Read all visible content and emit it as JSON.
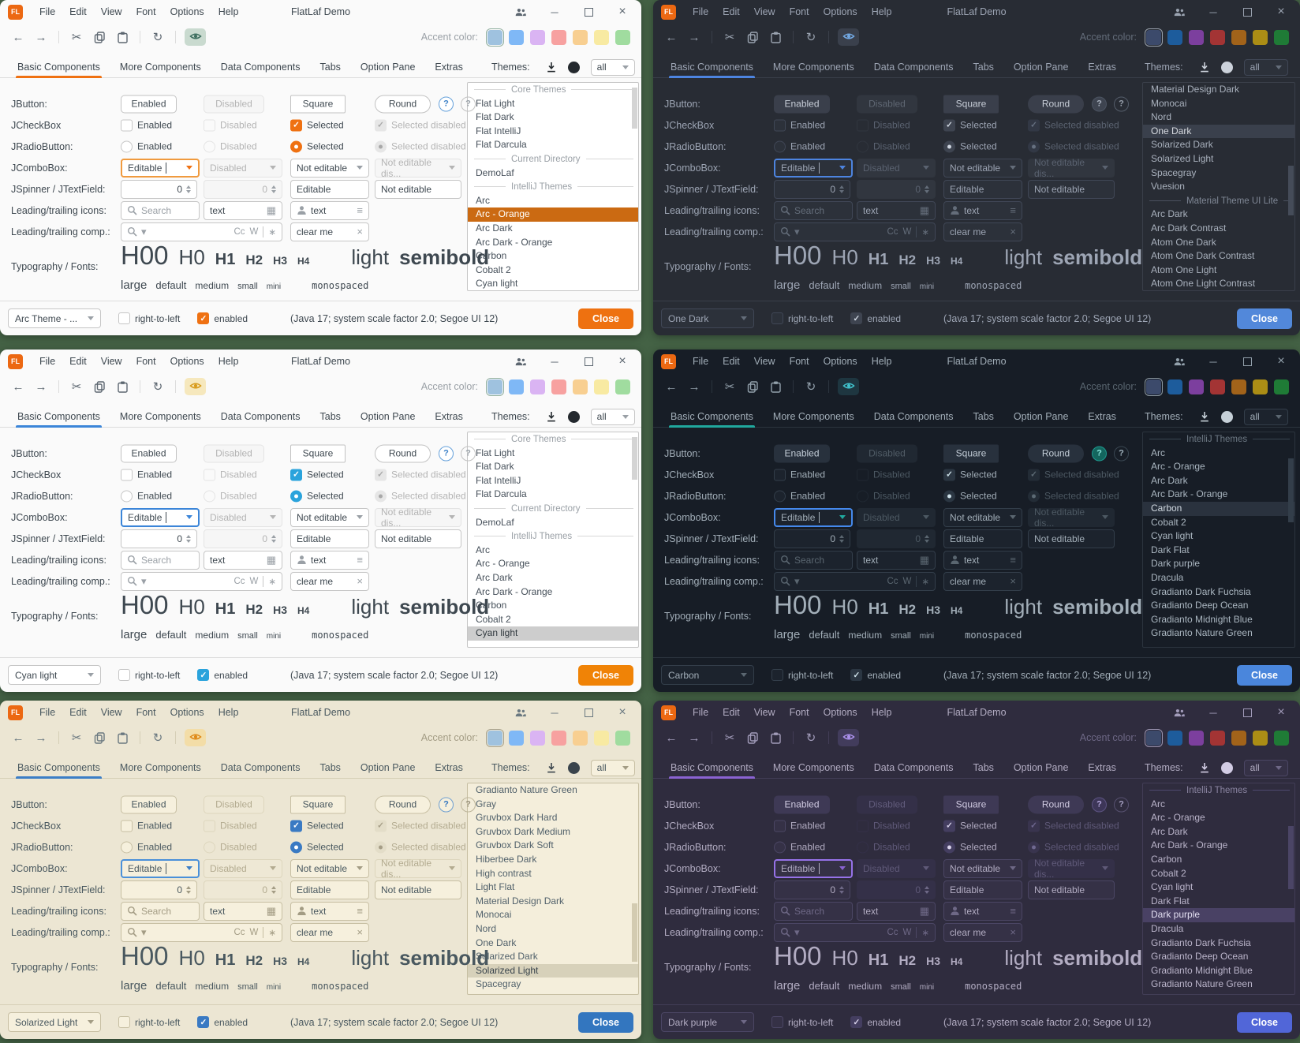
{
  "shared": {
    "logo_text": "FL",
    "title": "FlatLaf Demo",
    "menus": [
      "File",
      "Edit",
      "View",
      "Font",
      "Options",
      "Help"
    ],
    "accent_label": "Accent color:",
    "tabs": [
      "Basic Components",
      "More Components",
      "Data Components",
      "Tabs",
      "Option Pane",
      "Extras"
    ],
    "selected_tab": "Basic Components",
    "themes_label": "Themes:",
    "filter_value": "all",
    "rows": {
      "jbutton": {
        "label": "JButton:",
        "items": [
          "Enabled",
          "Disabled",
          "Square",
          "Round"
        ],
        "help": "?"
      },
      "jcheckbox": {
        "label": "JCheckBox",
        "items": [
          "Enabled",
          "Disabled",
          "Selected",
          "Selected disabled"
        ]
      },
      "jradiobutton": {
        "label": "JRadioButton:",
        "items": [
          "Enabled",
          "Disabled",
          "Selected",
          "Selected disabled"
        ]
      },
      "jcombobox": {
        "label": "JComboBox:",
        "items": [
          "Editable",
          "Disabled",
          "Not editable",
          "Not editable dis..."
        ]
      },
      "jspinner": {
        "label": "JSpinner / JTextField:",
        "items": [
          "0",
          "0",
          "Editable",
          "Not editable"
        ]
      },
      "icons": {
        "label": "Leading/trailing icons:",
        "search_placeholder": "Search",
        "text_value": "text"
      },
      "comps": {
        "label": "Leading/trailing comp.:",
        "match_case": "Cc",
        "whole_word": "W",
        "regex": "∗",
        "clear_value": "clear me"
      },
      "typography": {
        "label": "Typography / Fonts:",
        "headings": [
          "H00",
          "H0",
          "H1",
          "H2",
          "H3",
          "H4"
        ],
        "weights": [
          "light",
          "semibold"
        ],
        "sizes": [
          "large",
          "default",
          "medium",
          "small",
          "mini"
        ],
        "monospaced": "monospaced"
      }
    },
    "statusbar": {
      "rtl": "right-to-left",
      "enabled": "enabled",
      "info": "(Java 17;  system scale factor 2.0; Segoe UI 12)",
      "close": "Close"
    }
  },
  "icons": {
    "back": "←",
    "forward": "→",
    "cut": "✂",
    "refresh": "↻",
    "calendar": "▦",
    "list": "≡",
    "clear": "×",
    "caret_down": "▾",
    "minimize": "─",
    "close_window": "×",
    "check": "✓"
  },
  "accent_swatches": {
    "light": [
      "#9fc2df",
      "#7fb8f6",
      "#dab4f3",
      "#f7a1a0",
      "#f8cf91",
      "#f8eaa2",
      "#a0dc9f"
    ],
    "dark": [
      "#3c4a6b",
      "#1d5c9c",
      "#7c3f9e",
      "#a33434",
      "#a2631a",
      "#ab8d15",
      "#1f7b36"
    ]
  },
  "lists": {
    "core_intellij": [
      {
        "sep": "Core Themes"
      },
      "Flat Light",
      "Flat Dark",
      "Flat IntelliJ",
      "Flat Darcula",
      {
        "sep": "Current Directory"
      },
      "DemoLaf",
      {
        "sep": "IntelliJ Themes"
      },
      "Arc",
      "Arc - Orange",
      "Arc Dark",
      "Arc Dark - Orange",
      "Carbon",
      "Cobalt 2",
      "Cyan light"
    ],
    "one_dark_list": [
      "Material Design Dark",
      "Monocai",
      "Nord",
      "One Dark",
      "Solarized Dark",
      "Solarized Light",
      "Spacegray",
      "Vuesion",
      {
        "sep": "Material Theme UI Lite"
      },
      "Arc Dark",
      "Arc Dark Contrast",
      "Atom One Dark",
      "Atom One Dark Contrast",
      "Atom One Light",
      "Atom One Light Contrast"
    ],
    "intellij_section": [
      {
        "sep": "IntelliJ Themes"
      },
      "Arc",
      "Arc - Orange",
      "Arc Dark",
      "Arc Dark - Orange",
      "Carbon",
      "Cobalt 2",
      "Cyan light",
      "Dark Flat",
      "Dark purple",
      "Dracula",
      "Gradianto Dark Fuchsia",
      "Gradianto Deep Ocean",
      "Gradianto Midnight Blue",
      "Gradianto Nature Green"
    ],
    "light_scrolled": [
      "Gradianto Nature Green",
      "Gray",
      "Gruvbox Dark Hard",
      "Gruvbox Dark Medium",
      "Gruvbox Dark Soft",
      "Hiberbee Dark",
      "High contrast",
      "Light Flat",
      "Material Design Dark",
      "Monocai",
      "Nord",
      "One Dark",
      "Solarized Dark",
      "Solarized Light",
      "Spacegray"
    ]
  },
  "windows": [
    {
      "name": "arc-orange",
      "mode": "light",
      "combo_value": "Arc Theme - ...",
      "list": "core_intellij",
      "selected_theme": "Arc - Orange",
      "swatches": "light",
      "palette": {
        "bg": "#fafafa",
        "text": "#46505a",
        "label": "#3e4850",
        "muted": "#9aa0a6",
        "border": "#dcdcdc",
        "field_bg": "#ffffff",
        "field_border": "#c6c6c6",
        "disabled_text": "#b4b4b4",
        "accent": "#ef7112",
        "sel_bg": "#cb6a12",
        "sel_text": "#ffffff",
        "close_bg": "#ee7110",
        "close_text": "#ffffff",
        "eye_bg": "#c9dacf",
        "eye": "#3f6f60",
        "check_on": "#ef7112",
        "check_mark": "#ffffff",
        "radio_on": "#ef7112",
        "btn_bg": "#ffffff",
        "btn_border": "#c2c2c2",
        "btn_text": "#404a52",
        "btn_dis_bg": "#f6f6f6",
        "btn_dis_border": "#e4e4e4",
        "btn_dis_text": "#b4b4b4",
        "help1_bg": "#ffffff",
        "help1_border": "#64a0da",
        "help1_text": "#3e82c8",
        "help2_border": "#c2c2c2",
        "help2_text": "#98a0a8",
        "list_bg": "#ffffff",
        "list_border": "#c6c6c6",
        "sep_text": "#9aa0a6",
        "sep_line": "#d8d8d8",
        "scroll_thumb": "#d4d4d4",
        "icon": "#5c6670",
        "icon_strong": "#24292e",
        "swatch_border": "#8fae9e",
        "combo_focus": "#f09a3e",
        "chk_dis_bg": "#e6e6e6",
        "chk_dis_mark": "#a8a8a8",
        "logo_bg": "#ec6812"
      }
    },
    {
      "name": "one-dark",
      "mode": "dark",
      "combo_value": "One Dark",
      "list": "one_dark_list",
      "selected_theme": "One Dark",
      "swatches": "dark",
      "palette": {
        "bg": "#282c34",
        "text": "#a9b1bd",
        "label": "#9da5b4",
        "muted": "#646d7a",
        "border": "#3a3f4a",
        "field_bg": "#2c313a",
        "field_border": "#404756",
        "disabled_text": "#5a6270",
        "accent": "#4d84e0",
        "sel_bg": "#3a404c",
        "sel_text": "#d7dae0",
        "close_bg": "#5288da",
        "close_text": "#ffffff",
        "eye_bg": "#3a404c",
        "eye": "#72a8e2",
        "check_on": "#3e4450",
        "check_mark": "#cfd6e0",
        "radio_on": "#3e4450",
        "btn_bg": "#3a3f4b",
        "btn_border": "#3a3f4b",
        "btn_text": "#c9cfd9",
        "btn_dis_bg": "#31363f",
        "btn_dis_border": "#31363f",
        "btn_dis_text": "#5f6773",
        "help1_bg": "#3e4450",
        "help1_border": "#4c5462",
        "help1_text": "#aab2bf",
        "help2_border": "#555d6a",
        "help2_text": "#99a1ad",
        "list_bg": "#282c34",
        "list_border": "#3a3f4a",
        "sep_text": "#7f8795",
        "sep_line": "#4a515e",
        "scroll_thumb": "#454c59",
        "icon": "#9aa3b0",
        "icon_strong": "#ccd2db",
        "swatch_border": "#98a0ac",
        "combo_focus": "#4d84e0",
        "chk_dis_bg": "#323845",
        "chk_dis_mark": "#667080",
        "logo_bg": "#ec6812"
      }
    },
    {
      "name": "cyan-light",
      "mode": "light",
      "combo_value": "Cyan light",
      "list": "core_intellij",
      "selected_theme": "Cyan light",
      "swatches": "light",
      "palette": {
        "bg": "#fafafa",
        "text": "#46505a",
        "label": "#3e4850",
        "muted": "#9aa0a6",
        "border": "#dcdcdc",
        "field_bg": "#ffffff",
        "field_border": "#c6c6c6",
        "disabled_text": "#b4b4b4",
        "accent": "#3b85d8",
        "sel_bg": "#cdcdcd",
        "sel_text": "#30383e",
        "close_bg": "#f08306",
        "close_text": "#ffffff",
        "eye_bg": "#f6e8bd",
        "eye": "#d89b1b",
        "check_on": "#2aa3dc",
        "check_mark": "#ffffff",
        "radio_on": "#2aa3dc",
        "btn_bg": "#ffffff",
        "btn_border": "#c2c2c2",
        "btn_text": "#404a52",
        "btn_dis_bg": "#f6f6f6",
        "btn_dis_border": "#e4e4e4",
        "btn_dis_text": "#b4b4b4",
        "help1_bg": "#ffffff",
        "help1_border": "#64a0da",
        "help1_text": "#3e82c8",
        "help2_border": "#c2c2c2",
        "help2_text": "#98a0a8",
        "list_bg": "#ffffff",
        "list_border": "#c6c6c6",
        "sep_text": "#9aa0a6",
        "sep_line": "#d8d8d8",
        "scroll_thumb": "#d4d4d4",
        "icon": "#5c6670",
        "icon_strong": "#24292e",
        "swatch_border": "#8fae9e",
        "combo_focus": "#3b85d8",
        "chk_dis_bg": "#e6e6e6",
        "chk_dis_mark": "#a8a8a8",
        "logo_bg": "#ec6812"
      }
    },
    {
      "name": "carbon",
      "mode": "dark",
      "combo_value": "Carbon",
      "list": "intellij_section",
      "selected_theme": "Carbon",
      "swatches": "dark",
      "palette": {
        "bg": "#171d26",
        "text": "#aab6c0",
        "label": "#a2aeb8",
        "muted": "#5a6670",
        "border": "#2b343e",
        "field_bg": "#1c232d",
        "field_border": "#333e4a",
        "disabled_text": "#4c5862",
        "accent": "#21a89e",
        "sel_bg": "#2a323e",
        "sel_text": "#d2dae2",
        "close_bg": "#4a86dc",
        "close_text": "#ffffff",
        "eye_bg": "#1e3640",
        "eye": "#40c2cc",
        "check_on": "#2b3642",
        "check_mark": "#cfe2ea",
        "radio_on": "#2b3642",
        "btn_bg": "#28313d",
        "btn_border": "#28313d",
        "btn_text": "#c2ccd6",
        "btn_dis_bg": "#202832",
        "btn_dis_border": "#202832",
        "btn_dis_text": "#505c66",
        "help1_bg": "#14665e",
        "help1_border": "#1e9a90",
        "help1_text": "#8ae4da",
        "help2_border": "#3a4752",
        "help2_text": "#9fb2bd",
        "list_bg": "#171d26",
        "list_border": "#2b343e",
        "sep_text": "#6d7984",
        "sep_line": "#3a4652",
        "scroll_thumb": "#333e4a",
        "icon": "#93a1ac",
        "icon_strong": "#c6d0d8",
        "swatch_border": "#8c98a2",
        "combo_focus": "#4589ec",
        "chk_dis_bg": "#232c36",
        "chk_dis_mark": "#5c6a74",
        "logo_bg": "#ec6812"
      }
    },
    {
      "name": "solarized-light",
      "mode": "light",
      "combo_value": "Solarized Light",
      "list": "light_scrolled",
      "selected_theme": "Solarized Light",
      "swatches": "light",
      "palette": {
        "bg": "#ece6d3",
        "text": "#51616b",
        "label": "#49585f",
        "muted": "#a39c84",
        "border": "#d6cfb6",
        "field_bg": "#f6f0dd",
        "field_border": "#c7bfa3",
        "disabled_text": "#b3ab90",
        "accent": "#3c7ec6",
        "sel_bg": "#d7d1ba",
        "sel_text": "#39444c",
        "close_bg": "#3376bf",
        "close_text": "#ffffff",
        "eye_bg": "#f3dda7",
        "eye": "#df8a19",
        "check_on": "#3a7ac3",
        "check_mark": "#ffffff",
        "radio_on": "#3a7ac3",
        "btn_bg": "#f6f0dd",
        "btn_border": "#c7bfa3",
        "btn_text": "#49585f",
        "btn_dis_bg": "#eee8d5",
        "btn_dis_border": "#ddd6bd",
        "btn_dis_text": "#b3ab90",
        "help1_bg": "#f6f0dd",
        "help1_border": "#6f9fd0",
        "help1_text": "#3376bf",
        "help2_border": "#bdb59a",
        "help2_text": "#98917a",
        "list_bg": "#f4eedb",
        "list_border": "#c7bfa3",
        "sep_text": "#a39c84",
        "sep_line": "#d6cfb6",
        "scroll_thumb": "#d3cbb1",
        "icon": "#6a7880",
        "icon_strong": "#3a444c",
        "swatch_border": "#a8a28c",
        "combo_focus": "#4a90d9",
        "chk_dis_bg": "#e3ddc8",
        "chk_dis_mark": "#a59d86",
        "logo_bg": "#ec6812"
      }
    },
    {
      "name": "dark-purple",
      "mode": "dark",
      "combo_value": "Dark purple",
      "list": "intellij_section",
      "selected_theme": "Dark purple",
      "swatches": "dark",
      "palette": {
        "bg": "#2f2c3e",
        "text": "#bab4ca",
        "label": "#b2acc2",
        "muted": "#6e6886",
        "border": "#423d56",
        "field_bg": "#353146",
        "field_border": "#4b4664",
        "disabled_text": "#5f5978",
        "accent": "#8a63d2",
        "sel_bg": "#494164",
        "sel_text": "#e2def0",
        "close_bg": "#5166d8",
        "close_text": "#ffffff",
        "eye_bg": "#423c5c",
        "eye": "#aa90ea",
        "check_on": "#443e60",
        "check_mark": "#d8d2ea",
        "radio_on": "#443e60",
        "btn_bg": "#3e3955",
        "btn_border": "#3e3955",
        "btn_text": "#cfc9e0",
        "btn_dis_bg": "#343048",
        "btn_dis_border": "#343048",
        "btn_dis_text": "#625c7c",
        "help1_bg": "#3d3658",
        "help1_border": "#5d5482",
        "help1_text": "#b6a8de",
        "help2_border": "#575170",
        "help2_text": "#a59fc2",
        "list_bg": "#2f2c3e",
        "list_border": "#423d56",
        "sep_text": "#8b85a2",
        "sep_line": "#4f4970",
        "scroll_thumb": "#4b4566",
        "icon": "#a29cba",
        "icon_strong": "#d2cce4",
        "swatch_border": "#9a94b0",
        "combo_focus": "#9672e8",
        "chk_dis_bg": "#39344e",
        "chk_dis_mark": "#6f6890",
        "logo_bg": "#ec6812"
      }
    }
  ]
}
